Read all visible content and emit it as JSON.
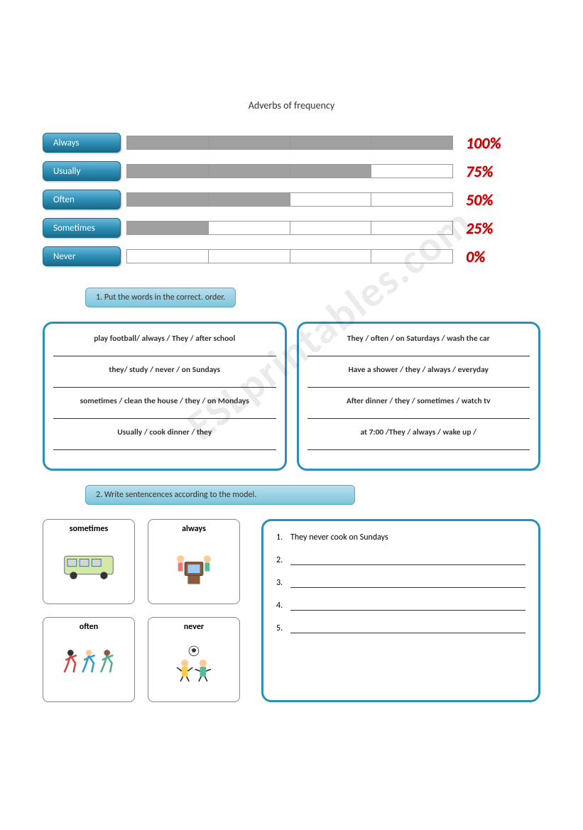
{
  "title": "Adverbs of frequency",
  "watermark": "ESLprintables.com",
  "chart": {
    "type": "bar",
    "label_bg_gradient": [
      "#6bb8d6",
      "#2d8fb5",
      "#1a6a8a"
    ],
    "bar_border_color": "#999999",
    "fill_color": "#a0a0a0",
    "empty_color": "#ffffff",
    "pct_color": "#c00000",
    "pct_fontsize": 22,
    "rows": [
      {
        "label": "Always",
        "percent": "100%",
        "filled": 4
      },
      {
        "label": "Usually",
        "percent": "75%",
        "filled": 3
      },
      {
        "label": "Often",
        "percent": "50%",
        "filled": 2
      },
      {
        "label": "Sometimes",
        "percent": "25%",
        "filled": 1
      },
      {
        "label": "Never",
        "percent": "0%",
        "filled": 0
      }
    ],
    "segments": 4
  },
  "instruction1": "1. Put the words in the correct. order.",
  "ex1_left": [
    "play football/ always / They / after school",
    "they/ study / never / on Sundays",
    "sometimes / clean the house / they / on Mondays",
    "Usually / cook dinner / they"
  ],
  "ex1_right": [
    "They / often / on Saturdays / wash the car",
    "Have a shower / they / always / everyday",
    "After dinner / they / sometimes / watch tv",
    "at 7:00 /They / always / wake up /"
  ],
  "instruction2": "2. Write sentencences according to the model.",
  "cards": [
    {
      "label": "sometimes",
      "icon": "bus"
    },
    {
      "label": "always",
      "icon": "tv"
    },
    {
      "label": "often",
      "icon": "run"
    },
    {
      "label": "never",
      "icon": "ball"
    }
  ],
  "answers": {
    "first": "They never cook on Sundays",
    "count": 5
  },
  "colors": {
    "box_border": "#2d8fb5",
    "instruction_bg": [
      "#b8e0ee",
      "#7fc5db"
    ],
    "text": "#333333"
  }
}
